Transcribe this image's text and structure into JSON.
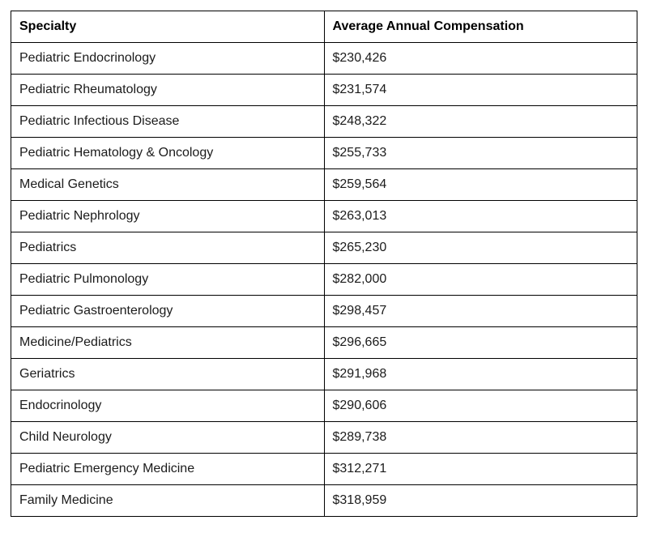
{
  "table": {
    "columns": [
      "Specialty",
      "Average Annual Compensation"
    ],
    "rows": [
      [
        "Pediatric Endocrinology",
        "$230,426"
      ],
      [
        "Pediatric Rheumatology",
        "$231,574"
      ],
      [
        "Pediatric Infectious Disease",
        "$248,322"
      ],
      [
        "Pediatric Hematology & Oncology",
        "$255,733"
      ],
      [
        "Medical Genetics",
        "$259,564"
      ],
      [
        "Pediatric Nephrology",
        "$263,013"
      ],
      [
        "Pediatrics",
        "$265,230"
      ],
      [
        "Pediatric Pulmonology",
        "$282,000"
      ],
      [
        "Pediatric Gastroenterology",
        "$298,457"
      ],
      [
        "Medicine/Pediatrics",
        "$296,665"
      ],
      [
        "Geriatrics",
        "$291,968"
      ],
      [
        "Endocrinology",
        "$290,606"
      ],
      [
        "Child Neurology",
        "$289,738"
      ],
      [
        "Pediatric Emergency Medicine",
        "$312,271"
      ],
      [
        "Family Medicine",
        "$318,959"
      ]
    ]
  },
  "colors": {
    "border": "#000000",
    "text": "#1b1b1b",
    "background": "#ffffff"
  },
  "chart_data": {
    "type": "table",
    "title": "",
    "columns": [
      "Specialty",
      "Average Annual Compensation"
    ],
    "categories": [
      "Pediatric Endocrinology",
      "Pediatric Rheumatology",
      "Pediatric Infectious Disease",
      "Pediatric Hematology & Oncology",
      "Medical Genetics",
      "Pediatric Nephrology",
      "Pediatrics",
      "Pediatric Pulmonology",
      "Pediatric Gastroenterology",
      "Medicine/Pediatrics",
      "Geriatrics",
      "Endocrinology",
      "Child Neurology",
      "Pediatric Emergency Medicine",
      "Family Medicine"
    ],
    "values": [
      230426,
      231574,
      248322,
      255733,
      259564,
      263013,
      265230,
      282000,
      298457,
      296665,
      291968,
      290606,
      289738,
      312271,
      318959
    ],
    "value_unit": "USD per year"
  }
}
